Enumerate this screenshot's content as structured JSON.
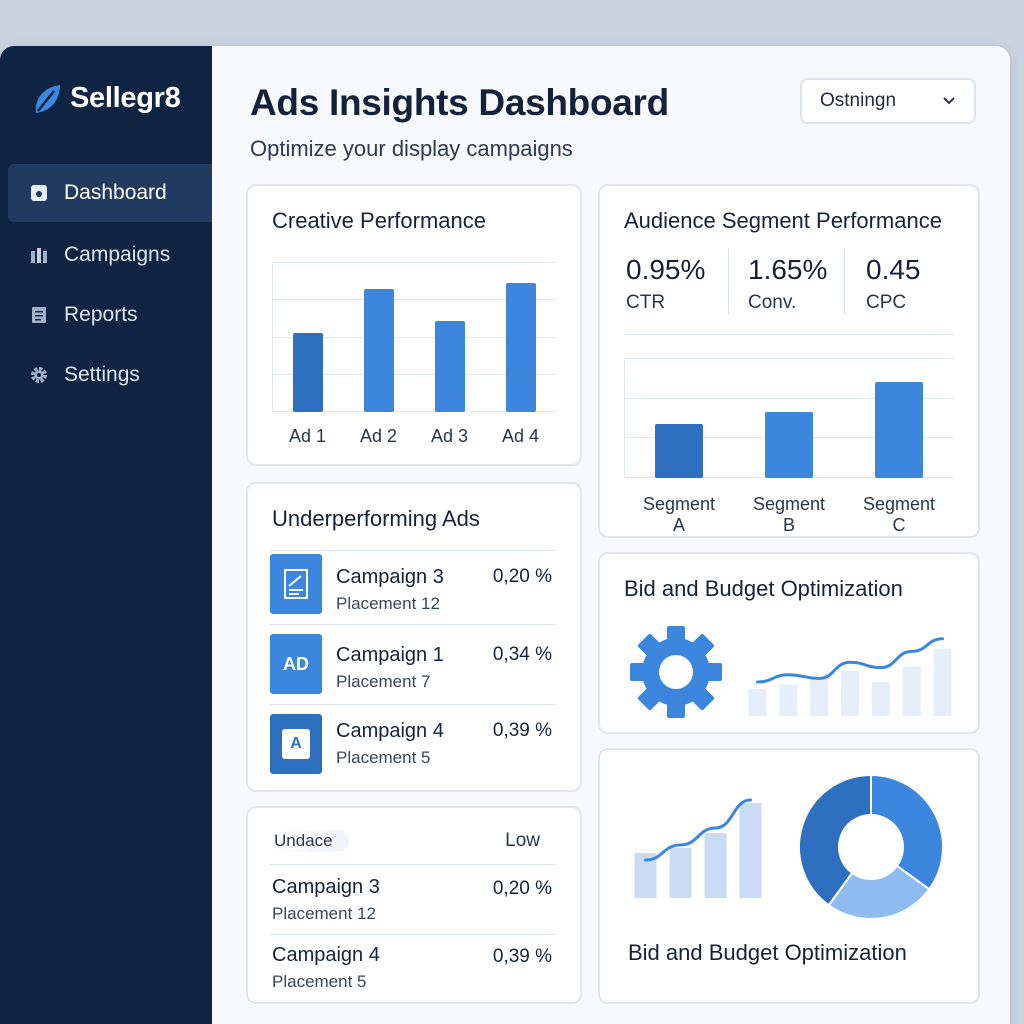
{
  "brand": {
    "name": "Sellegr8"
  },
  "sidebar": {
    "items": [
      {
        "label": "Dashboard",
        "icon": "dashboard-icon",
        "active": true
      },
      {
        "label": "Campaigns",
        "icon": "campaigns-icon",
        "active": false
      },
      {
        "label": "Reports",
        "icon": "reports-icon",
        "active": false
      },
      {
        "label": "Settings",
        "icon": "gear-icon",
        "active": false
      }
    ]
  },
  "header": {
    "title": "Ads Insights Dashboard",
    "subtitle": "Optimize your display campaigns",
    "select_value": "Ostningn"
  },
  "colors": {
    "sidebar": "#0f2443",
    "accent": "#3c86dd",
    "accent_dark": "#2f6fbf",
    "accent_light": "#dbe8f8"
  },
  "creative": {
    "title": "Creative Performance",
    "chart_data": {
      "type": "bar",
      "categories": [
        "Ad 1",
        "Ad 2",
        "Ad 3",
        "Ad 4"
      ],
      "values": [
        53,
        82,
        61,
        86
      ],
      "ylim": [
        0,
        100
      ],
      "grid": true
    }
  },
  "audience": {
    "title": "Audience Segment Performance",
    "kpis": [
      {
        "value": "0.95%",
        "label": "CTR"
      },
      {
        "value": "1.65%",
        "label": "Conv."
      },
      {
        "value": "0.45",
        "label": "CPC"
      }
    ],
    "chart_data": {
      "type": "bar",
      "categories": [
        "Segment A",
        "Segment B",
        "Segment C"
      ],
      "values": [
        45,
        55,
        80
      ],
      "ylim": [
        0,
        100
      ],
      "grid": true
    }
  },
  "underperforming": {
    "title": "Underperforming Ads",
    "rows": [
      {
        "name": "Campaign 3",
        "sub": "Placement 12",
        "value": "0,20 %",
        "thumb": "document-icon",
        "thumb_text": ""
      },
      {
        "name": "Campaign 1",
        "sub": "Placement 7",
        "value": "0,34 %",
        "thumb": "ad-badge-icon",
        "thumb_text": "AD"
      },
      {
        "name": "Campaign 4",
        "sub": "Placement 5",
        "value": "0,39 %",
        "thumb": "text-ad-icon",
        "thumb_text": "A"
      }
    ]
  },
  "bottom_table": {
    "left_header": "Undace",
    "right_header": "Low",
    "rows": [
      {
        "name": "Campaign  3",
        "sub": "Placement 12",
        "value": "0,20 %"
      },
      {
        "name": "Campaign  4",
        "sub": "Placement 5",
        "value": "0,39 %"
      }
    ]
  },
  "bid1": {
    "title": "Bid and Budget Optimization",
    "chart_data": {
      "type": "bar",
      "values": [
        30,
        35,
        42,
        50,
        38,
        55,
        75
      ],
      "line": [
        40,
        48,
        44,
        62,
        56,
        74,
        88
      ],
      "ylim": [
        0,
        100
      ]
    }
  },
  "bid2": {
    "title": "Bid and Budget Optimization",
    "chart_data": [
      {
        "type": "bar",
        "values": [
          45,
          50,
          65,
          95
        ],
        "line": [
          40,
          55,
          72,
          100
        ],
        "ylim": [
          0,
          100
        ]
      },
      {
        "type": "pie",
        "values": [
          40,
          35,
          25
        ]
      }
    ]
  }
}
